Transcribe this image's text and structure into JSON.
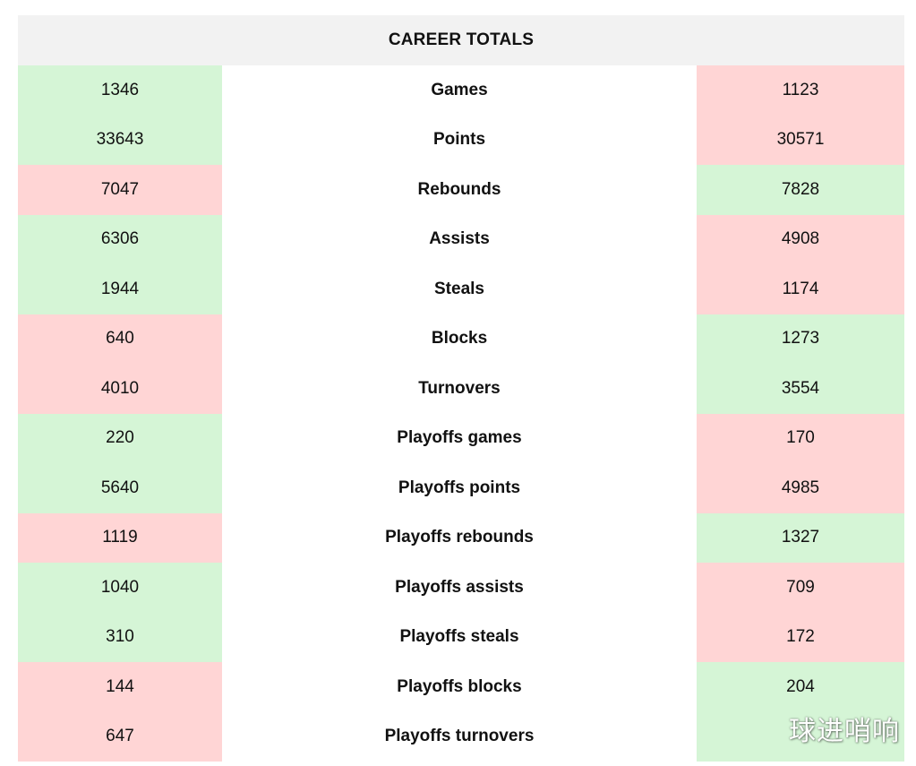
{
  "header": {
    "title": "CAREER TOTALS"
  },
  "colors": {
    "better": "#d5f5d6",
    "worse": "#ffd5d5",
    "header_bg": "#f2f2f2"
  },
  "rows": [
    {
      "label": "Games",
      "left": "1346",
      "right": "1123",
      "left_status": "green",
      "right_status": "red"
    },
    {
      "label": "Points",
      "left": "33643",
      "right": "30571",
      "left_status": "green",
      "right_status": "red"
    },
    {
      "label": "Rebounds",
      "left": "7047",
      "right": "7828",
      "left_status": "red",
      "right_status": "green"
    },
    {
      "label": "Assists",
      "left": "6306",
      "right": "4908",
      "left_status": "green",
      "right_status": "red"
    },
    {
      "label": "Steals",
      "left": "1944",
      "right": "1174",
      "left_status": "green",
      "right_status": "red"
    },
    {
      "label": "Blocks",
      "left": "640",
      "right": "1273",
      "left_status": "red",
      "right_status": "green"
    },
    {
      "label": "Turnovers",
      "left": "4010",
      "right": "3554",
      "left_status": "red",
      "right_status": "green"
    },
    {
      "label": "Playoffs games",
      "left": "220",
      "right": "170",
      "left_status": "green",
      "right_status": "red"
    },
    {
      "label": "Playoffs points",
      "left": "5640",
      "right": "4985",
      "left_status": "green",
      "right_status": "red"
    },
    {
      "label": "Playoffs rebounds",
      "left": "1119",
      "right": "1327",
      "left_status": "red",
      "right_status": "green"
    },
    {
      "label": "Playoffs assists",
      "left": "1040",
      "right": "709",
      "left_status": "green",
      "right_status": "red"
    },
    {
      "label": "Playoffs steals",
      "left": "310",
      "right": "172",
      "left_status": "green",
      "right_status": "red"
    },
    {
      "label": "Playoffs blocks",
      "left": "144",
      "right": "204",
      "left_status": "red",
      "right_status": "green"
    },
    {
      "label": "Playoffs turnovers",
      "left": "647",
      "right": "",
      "left_status": "red",
      "right_status": "green"
    }
  ],
  "watermark": "球进哨响"
}
